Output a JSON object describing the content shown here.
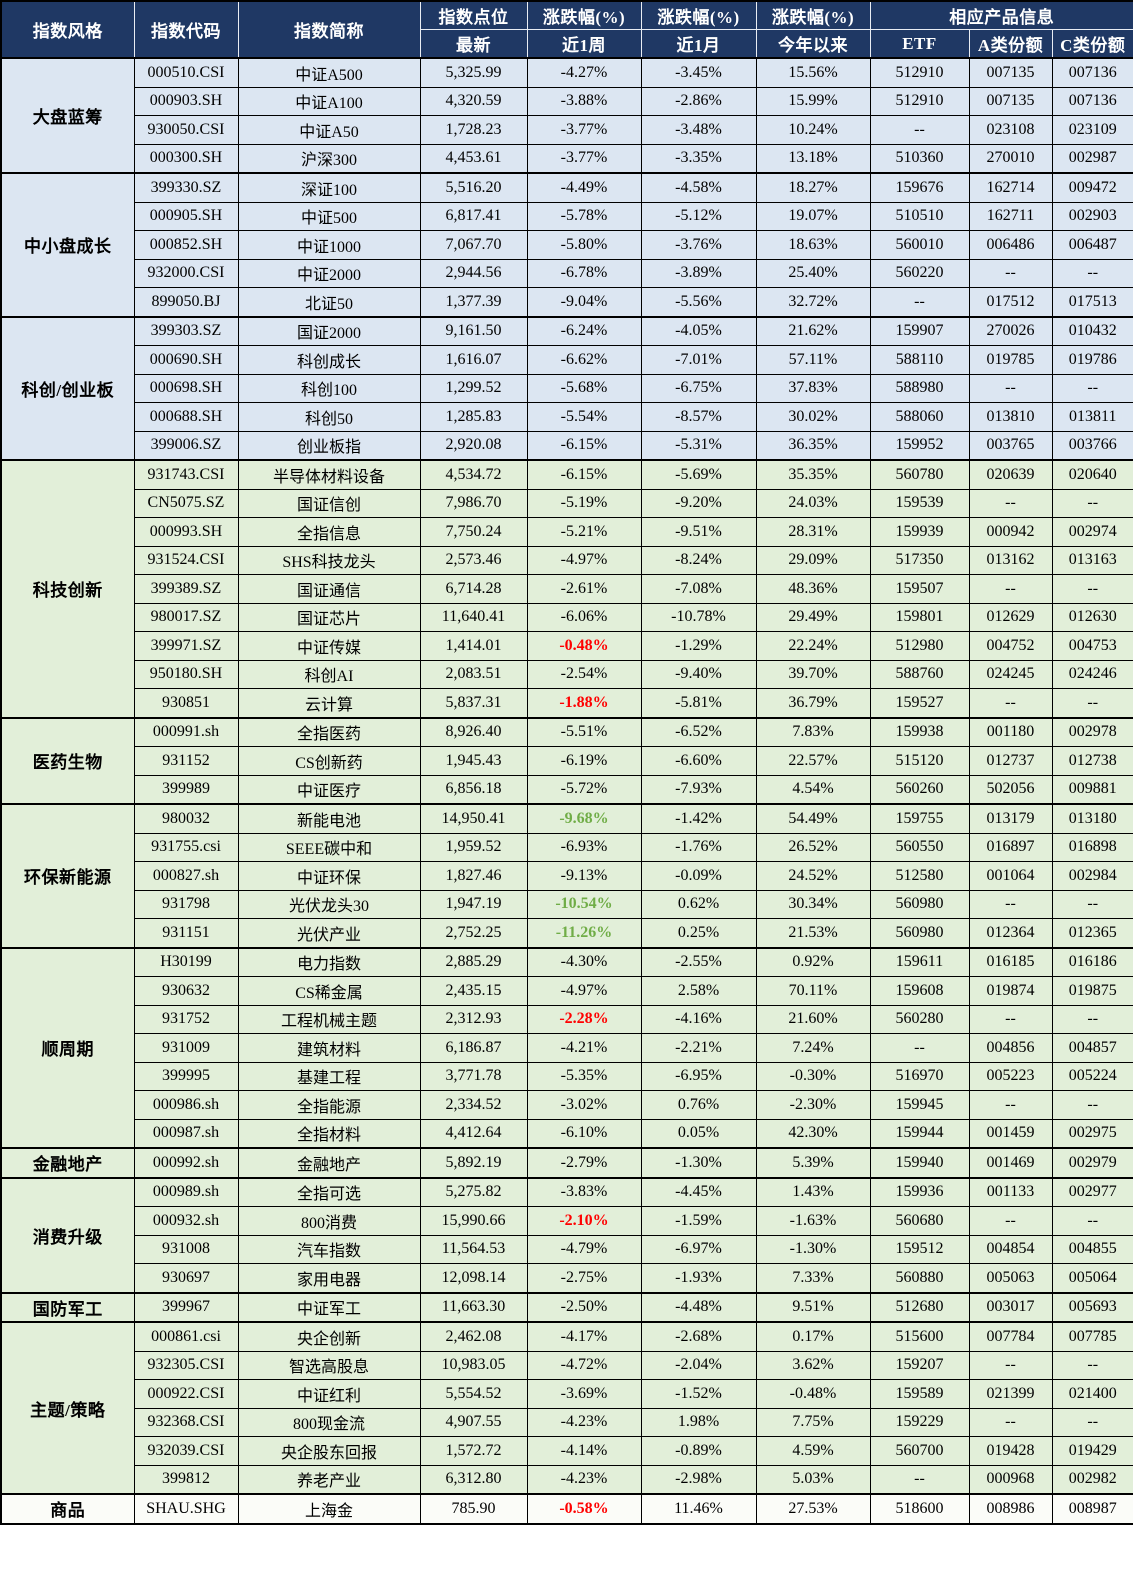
{
  "colors": {
    "header_bg": "#1F3864",
    "header_text": "#FFFFFF",
    "row_blue": "#DCE6F2",
    "row_green": "#E2EFD9",
    "row_white": "#FBFCF8",
    "highlight_red": "#FF0000",
    "highlight_green": "#70AD47"
  },
  "chart_data": {
    "type": "table",
    "columns": {
      "index_style": "指数风格",
      "index_code": "指数代码",
      "index_name": "指数简称",
      "index_points": "指数点位",
      "points_latest": "最新",
      "chg_pct": "涨跌幅(%)",
      "chg_1w": "近1周",
      "chg_1m": "近1月",
      "chg_ytd": "今年以来",
      "products": "相应产品信息",
      "etf": "ETF",
      "class_a": "A类份额",
      "class_c": "C类份额"
    },
    "groups": [
      {
        "label": "大盘蓝筹",
        "tone": "blue",
        "rows": [
          {
            "code": "000510.CSI",
            "name": "中证A500",
            "latest": "5,325.99",
            "chg_1w": "-4.27%",
            "chg_1m": "-3.45%",
            "chg_ytd": "15.56%",
            "etf": "512910",
            "class_a": "007135",
            "class_c": "007136"
          },
          {
            "code": "000903.SH",
            "name": "中证A100",
            "latest": "4,320.59",
            "chg_1w": "-3.88%",
            "chg_1m": "-2.86%",
            "chg_ytd": "15.99%",
            "etf": "512910",
            "class_a": "007135",
            "class_c": "007136"
          },
          {
            "code": "930050.CSI",
            "name": "中证A50",
            "latest": "1,728.23",
            "chg_1w": "-3.77%",
            "chg_1m": "-3.48%",
            "chg_ytd": "10.24%",
            "etf": "--",
            "class_a": "023108",
            "class_c": "023109"
          },
          {
            "code": "000300.SH",
            "name": "沪深300",
            "latest": "4,453.61",
            "chg_1w": "-3.77%",
            "chg_1m": "-3.35%",
            "chg_ytd": "13.18%",
            "etf": "510360",
            "class_a": "270010",
            "class_c": "002987"
          }
        ]
      },
      {
        "label": "中小盘成长",
        "tone": "blue",
        "rows": [
          {
            "code": "399330.SZ",
            "name": "深证100",
            "latest": "5,516.20",
            "chg_1w": "-4.49%",
            "chg_1m": "-4.58%",
            "chg_ytd": "18.27%",
            "etf": "159676",
            "class_a": "162714",
            "class_c": "009472"
          },
          {
            "code": "000905.SH",
            "name": "中证500",
            "latest": "6,817.41",
            "chg_1w": "-5.78%",
            "chg_1m": "-5.12%",
            "chg_ytd": "19.07%",
            "etf": "510510",
            "class_a": "162711",
            "class_c": "002903"
          },
          {
            "code": "000852.SH",
            "name": "中证1000",
            "latest": "7,067.70",
            "chg_1w": "-5.80%",
            "chg_1m": "-3.76%",
            "chg_ytd": "18.63%",
            "etf": "560010",
            "class_a": "006486",
            "class_c": "006487"
          },
          {
            "code": "932000.CSI",
            "name": "中证2000",
            "latest": "2,944.56",
            "chg_1w": "-6.78%",
            "chg_1m": "-3.89%",
            "chg_ytd": "25.40%",
            "etf": "560220",
            "class_a": "--",
            "class_c": "--"
          },
          {
            "code": "899050.BJ",
            "name": "北证50",
            "latest": "1,377.39",
            "chg_1w": "-9.04%",
            "chg_1m": "-5.56%",
            "chg_ytd": "32.72%",
            "etf": "--",
            "class_a": "017512",
            "class_c": "017513"
          }
        ]
      },
      {
        "label": "科创/创业板",
        "tone": "blue",
        "rows": [
          {
            "code": "399303.SZ",
            "name": "国证2000",
            "latest": "9,161.50",
            "chg_1w": "-6.24%",
            "chg_1m": "-4.05%",
            "chg_ytd": "21.62%",
            "etf": "159907",
            "class_a": "270026",
            "class_c": "010432"
          },
          {
            "code": "000690.SH",
            "name": "科创成长",
            "latest": "1,616.07",
            "chg_1w": "-6.62%",
            "chg_1m": "-7.01%",
            "chg_ytd": "57.11%",
            "etf": "588110",
            "class_a": "019785",
            "class_c": "019786"
          },
          {
            "code": "000698.SH",
            "name": "科创100",
            "latest": "1,299.52",
            "chg_1w": "-5.68%",
            "chg_1m": "-6.75%",
            "chg_ytd": "37.83%",
            "etf": "588980",
            "class_a": "--",
            "class_c": "--"
          },
          {
            "code": "000688.SH",
            "name": "科创50",
            "latest": "1,285.83",
            "chg_1w": "-5.54%",
            "chg_1m": "-8.57%",
            "chg_ytd": "30.02%",
            "etf": "588060",
            "class_a": "013810",
            "class_c": "013811"
          },
          {
            "code": "399006.SZ",
            "name": "创业板指",
            "latest": "2,920.08",
            "chg_1w": "-6.15%",
            "chg_1m": "-5.31%",
            "chg_ytd": "36.35%",
            "etf": "159952",
            "class_a": "003765",
            "class_c": "003766"
          }
        ]
      },
      {
        "label": "科技创新",
        "tone": "green",
        "rows": [
          {
            "code": "931743.CSI",
            "name": "半导体材料设备",
            "latest": "4,534.72",
            "chg_1w": "-6.15%",
            "chg_1m": "-5.69%",
            "chg_ytd": "35.35%",
            "etf": "560780",
            "class_a": "020639",
            "class_c": "020640"
          },
          {
            "code": "CN5075.SZ",
            "name": "国证信创",
            "latest": "7,986.70",
            "chg_1w": "-5.19%",
            "chg_1m": "-9.20%",
            "chg_ytd": "24.03%",
            "etf": "159539",
            "class_a": "--",
            "class_c": "--"
          },
          {
            "code": "000993.SH",
            "name": "全指信息",
            "latest": "7,750.24",
            "chg_1w": "-5.21%",
            "chg_1m": "-9.51%",
            "chg_ytd": "28.31%",
            "etf": "159939",
            "class_a": "000942",
            "class_c": "002974"
          },
          {
            "code": "931524.CSI",
            "name": "SHS科技龙头",
            "latest": "2,573.46",
            "chg_1w": "-4.97%",
            "chg_1m": "-8.24%",
            "chg_ytd": "29.09%",
            "etf": "517350",
            "class_a": "013162",
            "class_c": "013163"
          },
          {
            "code": "399389.SZ",
            "name": "国证通信",
            "latest": "6,714.28",
            "chg_1w": "-2.61%",
            "chg_1m": "-7.08%",
            "chg_ytd": "48.36%",
            "etf": "159507",
            "class_a": "--",
            "class_c": "--"
          },
          {
            "code": "980017.SZ",
            "name": "国证芯片",
            "latest": "11,640.41",
            "chg_1w": "-6.06%",
            "chg_1m": "-10.78%",
            "chg_ytd": "29.49%",
            "etf": "159801",
            "class_a": "012629",
            "class_c": "012630"
          },
          {
            "code": "399971.SZ",
            "name": "中证传媒",
            "latest": "1,414.01",
            "chg_1w": "-0.48%",
            "hl_1w": "red",
            "chg_1m": "-1.29%",
            "chg_ytd": "22.24%",
            "etf": "512980",
            "class_a": "004752",
            "class_c": "004753"
          },
          {
            "code": "950180.SH",
            "name": "科创AI",
            "latest": "2,083.51",
            "chg_1w": "-2.54%",
            "chg_1m": "-9.40%",
            "chg_ytd": "39.70%",
            "etf": "588760",
            "class_a": "024245",
            "class_c": "024246"
          },
          {
            "code": "930851",
            "name": "云计算",
            "latest": "5,837.31",
            "chg_1w": "-1.88%",
            "hl_1w": "red",
            "chg_1m": "-5.81%",
            "chg_ytd": "36.79%",
            "etf": "159527",
            "class_a": "--",
            "class_c": "--"
          }
        ]
      },
      {
        "label": "医药生物",
        "tone": "green",
        "rows": [
          {
            "code": "000991.sh",
            "name": "全指医药",
            "latest": "8,926.40",
            "chg_1w": "-5.51%",
            "chg_1m": "-6.52%",
            "chg_ytd": "7.83%",
            "etf": "159938",
            "class_a": "001180",
            "class_c": "002978"
          },
          {
            "code": "931152",
            "name": "CS创新药",
            "latest": "1,945.43",
            "chg_1w": "-6.19%",
            "chg_1m": "-6.60%",
            "chg_ytd": "22.57%",
            "etf": "515120",
            "class_a": "012737",
            "class_c": "012738"
          },
          {
            "code": "399989",
            "name": "中证医疗",
            "latest": "6,856.18",
            "chg_1w": "-5.72%",
            "chg_1m": "-7.93%",
            "chg_ytd": "4.54%",
            "etf": "560260",
            "class_a": "502056",
            "class_c": "009881"
          }
        ]
      },
      {
        "label": "环保新能源",
        "tone": "green",
        "rows": [
          {
            "code": "980032",
            "name": "新能电池",
            "latest": "14,950.41",
            "chg_1w": "-9.68%",
            "hl_1w": "green",
            "chg_1m": "-1.42%",
            "chg_ytd": "54.49%",
            "etf": "159755",
            "class_a": "013179",
            "class_c": "013180"
          },
          {
            "code": "931755.csi",
            "name": "SEEE碳中和",
            "latest": "1,959.52",
            "chg_1w": "-6.93%",
            "chg_1m": "-1.76%",
            "chg_ytd": "26.52%",
            "etf": "560550",
            "class_a": "016897",
            "class_c": "016898"
          },
          {
            "code": "000827.sh",
            "name": "中证环保",
            "latest": "1,827.46",
            "chg_1w": "-9.13%",
            "chg_1m": "-0.09%",
            "chg_ytd": "24.52%",
            "etf": "512580",
            "class_a": "001064",
            "class_c": "002984"
          },
          {
            "code": "931798",
            "name": "光伏龙头30",
            "latest": "1,947.19",
            "chg_1w": "-10.54%",
            "hl_1w": "green",
            "chg_1m": "0.62%",
            "chg_ytd": "30.34%",
            "etf": "560980",
            "class_a": "--",
            "class_c": "--"
          },
          {
            "code": "931151",
            "name": "光伏产业",
            "latest": "2,752.25",
            "chg_1w": "-11.26%",
            "hl_1w": "green",
            "chg_1m": "0.25%",
            "chg_ytd": "21.53%",
            "etf": "560980",
            "class_a": "012364",
            "class_c": "012365"
          }
        ]
      },
      {
        "label": "顺周期",
        "tone": "green",
        "rows": [
          {
            "code": "H30199",
            "name": "电力指数",
            "latest": "2,885.29",
            "chg_1w": "-4.30%",
            "chg_1m": "-2.55%",
            "chg_ytd": "0.92%",
            "etf": "159611",
            "class_a": "016185",
            "class_c": "016186"
          },
          {
            "code": "930632",
            "name": "CS稀金属",
            "latest": "2,435.15",
            "chg_1w": "-4.97%",
            "chg_1m": "2.58%",
            "chg_ytd": "70.11%",
            "etf": "159608",
            "class_a": "019874",
            "class_c": "019875"
          },
          {
            "code": "931752",
            "name": "工程机械主题",
            "latest": "2,312.93",
            "chg_1w": "-2.28%",
            "hl_1w": "red",
            "chg_1m": "-4.16%",
            "chg_ytd": "21.60%",
            "etf": "560280",
            "class_a": "--",
            "class_c": "--"
          },
          {
            "code": "931009",
            "name": "建筑材料",
            "latest": "6,186.87",
            "chg_1w": "-4.21%",
            "chg_1m": "-2.21%",
            "chg_ytd": "7.24%",
            "etf": "--",
            "class_a": "004856",
            "class_c": "004857"
          },
          {
            "code": "399995",
            "name": "基建工程",
            "latest": "3,771.78",
            "chg_1w": "-5.35%",
            "chg_1m": "-6.95%",
            "chg_ytd": "-0.30%",
            "etf": "516970",
            "class_a": "005223",
            "class_c": "005224"
          },
          {
            "code": "000986.sh",
            "name": "全指能源",
            "latest": "2,334.52",
            "chg_1w": "-3.02%",
            "chg_1m": "0.76%",
            "chg_ytd": "-2.30%",
            "etf": "159945",
            "class_a": "--",
            "class_c": "--"
          },
          {
            "code": "000987.sh",
            "name": "全指材料",
            "latest": "4,412.64",
            "chg_1w": "-6.10%",
            "chg_1m": "0.05%",
            "chg_ytd": "42.30%",
            "etf": "159944",
            "class_a": "001459",
            "class_c": "002975"
          }
        ]
      },
      {
        "label": "金融地产",
        "tone": "green",
        "rows": [
          {
            "code": "000992.sh",
            "name": "金融地产",
            "latest": "5,892.19",
            "chg_1w": "-2.79%",
            "chg_1m": "-1.30%",
            "chg_ytd": "5.39%",
            "etf": "159940",
            "class_a": "001469",
            "class_c": "002979"
          }
        ]
      },
      {
        "label": "消费升级",
        "tone": "green",
        "rows": [
          {
            "code": "000989.sh",
            "name": "全指可选",
            "latest": "5,275.82",
            "chg_1w": "-3.83%",
            "chg_1m": "-4.45%",
            "chg_ytd": "1.43%",
            "etf": "159936",
            "class_a": "001133",
            "class_c": "002977"
          },
          {
            "code": "000932.sh",
            "name": "800消费",
            "latest": "15,990.66",
            "chg_1w": "-2.10%",
            "hl_1w": "red",
            "chg_1m": "-1.59%",
            "chg_ytd": "-1.63%",
            "etf": "560680",
            "class_a": "--",
            "class_c": "--"
          },
          {
            "code": "931008",
            "name": "汽车指数",
            "latest": "11,564.53",
            "chg_1w": "-4.79%",
            "chg_1m": "-6.97%",
            "chg_ytd": "-1.30%",
            "etf": "159512",
            "class_a": "004854",
            "class_c": "004855"
          },
          {
            "code": "930697",
            "name": "家用电器",
            "latest": "12,098.14",
            "chg_1w": "-2.75%",
            "chg_1m": "-1.93%",
            "chg_ytd": "7.33%",
            "etf": "560880",
            "class_a": "005063",
            "class_c": "005064"
          }
        ]
      },
      {
        "label": "国防军工",
        "tone": "green",
        "rows": [
          {
            "code": "399967",
            "name": "中证军工",
            "latest": "11,663.30",
            "chg_1w": "-2.50%",
            "chg_1m": "-4.48%",
            "chg_ytd": "9.51%",
            "etf": "512680",
            "class_a": "003017",
            "class_c": "005693"
          }
        ]
      },
      {
        "label": "主题/策略",
        "tone": "green",
        "rows": [
          {
            "code": "000861.csi",
            "name": "央企创新",
            "latest": "2,462.08",
            "chg_1w": "-4.17%",
            "chg_1m": "-2.68%",
            "chg_ytd": "0.17%",
            "etf": "515600",
            "class_a": "007784",
            "class_c": "007785"
          },
          {
            "code": "932305.CSI",
            "name": "智选高股息",
            "latest": "10,983.05",
            "chg_1w": "-4.72%",
            "chg_1m": "-2.04%",
            "chg_ytd": "3.62%",
            "etf": "159207",
            "class_a": "--",
            "class_c": "--"
          },
          {
            "code": "000922.CSI",
            "name": "中证红利",
            "latest": "5,554.52",
            "chg_1w": "-3.69%",
            "chg_1m": "-1.52%",
            "chg_ytd": "-0.48%",
            "etf": "159589",
            "class_a": "021399",
            "class_c": "021400"
          },
          {
            "code": "932368.CSI",
            "name": "800现金流",
            "latest": "4,907.55",
            "chg_1w": "-4.23%",
            "chg_1m": "1.98%",
            "chg_ytd": "7.75%",
            "etf": "159229",
            "class_a": "--",
            "class_c": "--"
          },
          {
            "code": "932039.CSI",
            "name": "央企股东回报",
            "latest": "1,572.72",
            "chg_1w": "-4.14%",
            "chg_1m": "-0.89%",
            "chg_ytd": "4.59%",
            "etf": "560700",
            "class_a": "019428",
            "class_c": "019429"
          },
          {
            "code": "399812",
            "name": "养老产业",
            "latest": "6,312.80",
            "chg_1w": "-4.23%",
            "chg_1m": "-2.98%",
            "chg_ytd": "5.03%",
            "etf": "--",
            "class_a": "000968",
            "class_c": "002982"
          }
        ]
      },
      {
        "label": "商品",
        "tone": "white",
        "rows": [
          {
            "code": "SHAU.SHG",
            "name": "上海金",
            "latest": "785.90",
            "chg_1w": "-0.58%",
            "hl_1w": "red",
            "chg_1m": "11.46%",
            "chg_ytd": "27.53%",
            "etf": "518600",
            "class_a": "008986",
            "class_c": "008987"
          }
        ]
      }
    ]
  }
}
